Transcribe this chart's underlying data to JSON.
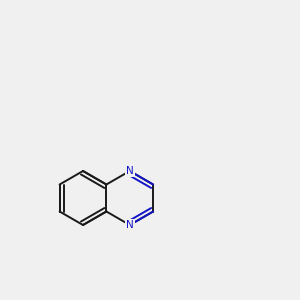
{
  "bg_color": "#f0f0f0",
  "bond_color": "#1a1a1a",
  "n_color": "#1414c8",
  "s_color": "#c8c800",
  "o_color": "#e00000",
  "nh_color": "#5a9090",
  "amide_o_color": "#e00000",
  "fig_width": 3.0,
  "fig_height": 3.0,
  "dpi": 100
}
